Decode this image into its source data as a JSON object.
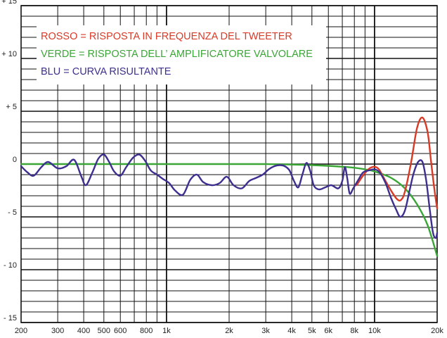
{
  "chart_data": {
    "type": "line",
    "xscale": "log",
    "xlim": [
      200,
      20000
    ],
    "ylim": [
      -15,
      15
    ],
    "grid": true,
    "legend_position": "top-left",
    "x_tick_labels": [
      {
        "v": 200,
        "label": "200"
      },
      {
        "v": 300,
        "label": "300"
      },
      {
        "v": 400,
        "label": "400"
      },
      {
        "v": 500,
        "label": "500"
      },
      {
        "v": 600,
        "label": "600"
      },
      {
        "v": 800,
        "label": "800"
      },
      {
        "v": 1000,
        "label": "1k"
      },
      {
        "v": 2000,
        "label": "2k"
      },
      {
        "v": 3000,
        "label": "3k"
      },
      {
        "v": 4000,
        "label": "4k"
      },
      {
        "v": 5000,
        "label": "5k"
      },
      {
        "v": 6000,
        "label": "6k"
      },
      {
        "v": 8000,
        "label": "8k"
      },
      {
        "v": 10000,
        "label": "10k"
      },
      {
        "v": 20000,
        "label": "20k"
      }
    ],
    "y_tick_labels": [
      {
        "v": 15,
        "label": "+ 15"
      },
      {
        "v": 10,
        "label": "+ 10"
      },
      {
        "v": 5,
        "label": "+ 5"
      },
      {
        "v": 0,
        "label": "0"
      },
      {
        "v": -5,
        "label": "- 5"
      },
      {
        "v": -10,
        "label": "- 10"
      },
      {
        "v": -15,
        "label": "- 15"
      }
    ],
    "legend": [
      {
        "label": "ROSSO = RISPOSTA IN FREQUENZA DEL TWEETER",
        "color": "#d93a26"
      },
      {
        "label": "VERDE = RISPOSTA DELL’ AMPLIFICATORE VALVOLARE",
        "color": "#3aa636"
      },
      {
        "label": "BLU = CURVA RISULTANTE",
        "color": "#3d2f8f"
      }
    ],
    "series": [
      {
        "color": "#3aa636",
        "x": [
          200,
          1000,
          3000,
          5000,
          7000,
          8000,
          9000,
          10000,
          12000,
          14000,
          16000,
          18000,
          20000
        ],
        "y": [
          0,
          0,
          0,
          -0.1,
          -0.25,
          -0.35,
          -0.5,
          -0.7,
          -1.3,
          -2.3,
          -3.8,
          -5.8,
          -8.7
        ]
      },
      {
        "color": "#d93a26",
        "x": [
          8200,
          8800,
          9400,
          10000,
          10500,
          11000,
          12000,
          12800,
          13400,
          14000,
          15000,
          16000,
          17000,
          18000,
          18700,
          19400,
          20000
        ],
        "y": [
          -2.0,
          -1.1,
          -0.45,
          -0.25,
          -0.5,
          -1.2,
          -2.5,
          -3.3,
          -3.4,
          -2.6,
          0.2,
          3.4,
          4.4,
          3.0,
          0.2,
          -2.4,
          -4.2
        ]
      },
      {
        "color": "#3d2f8f",
        "x": [
          200,
          215,
          230,
          250,
          270,
          300,
          330,
          360,
          390,
          410,
          440,
          470,
          500,
          530,
          560,
          600,
          640,
          690,
          740,
          790,
          840,
          900,
          960,
          1030,
          1100,
          1200,
          1300,
          1400,
          1500,
          1650,
          1800,
          1950,
          2100,
          2300,
          2500,
          2700,
          2900,
          3100,
          3300,
          3500,
          3700,
          3900,
          4100,
          4300,
          4500,
          4700,
          4900,
          5100,
          5400,
          5800,
          6200,
          6700,
          7000,
          7200,
          7400,
          7600,
          7900,
          8300,
          8800,
          9400,
          10000,
          10600,
          11300,
          12000,
          12700,
          13300,
          14000,
          14700,
          15400,
          16200,
          17000,
          17700,
          18400,
          19100,
          19700,
          20000
        ],
        "y": [
          -0.2,
          -0.8,
          -1.1,
          -0.3,
          0.2,
          -0.4,
          -0.2,
          0.4,
          -1.2,
          -2.0,
          -0.8,
          0.5,
          0.9,
          0.2,
          -0.7,
          -1.1,
          -0.3,
          0.6,
          0.9,
          0.3,
          -0.6,
          -1.0,
          -1.4,
          -1.8,
          -2.5,
          -2.9,
          -1.5,
          -1.0,
          -1.7,
          -2.0,
          -1.8,
          -1.2,
          -2.0,
          -2.3,
          -1.6,
          -1.3,
          -1.0,
          -0.5,
          -0.2,
          -0.1,
          -0.2,
          -0.6,
          -1.6,
          -2.2,
          -1.0,
          0.1,
          -0.6,
          -2.0,
          -2.4,
          -2.2,
          -2.0,
          -2.3,
          -1.6,
          -0.3,
          -1.4,
          -2.8,
          -2.3,
          -1.6,
          -0.8,
          -0.6,
          -0.5,
          -0.8,
          -1.8,
          -3.2,
          -4.3,
          -5.0,
          -4.4,
          -2.6,
          -0.9,
          0.2,
          0.2,
          -1.5,
          -4.2,
          -6.5,
          -7.0,
          -6.5
        ]
      }
    ]
  }
}
